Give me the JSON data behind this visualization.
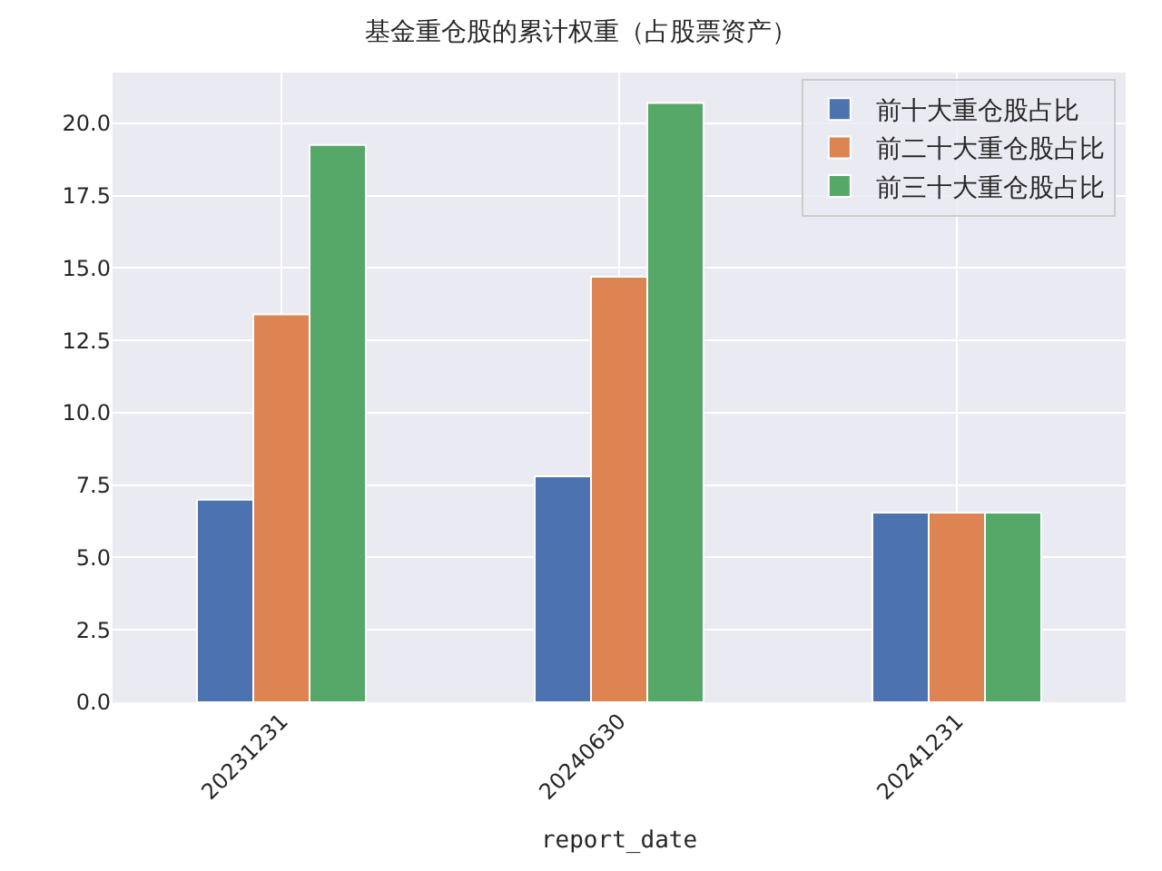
{
  "chart_data": {
    "type": "bar",
    "title": "基金重仓股的累计权重（占股票资产）",
    "xlabel": "report_date",
    "categories": [
      "20231231",
      "20240630",
      "20241231"
    ],
    "series": [
      {
        "name": "前十大重仓股占比",
        "color": "#4c72b0",
        "values": [
          7.0,
          7.8,
          6.55
        ]
      },
      {
        "name": "前二十大重仓股占比",
        "color": "#dd8452",
        "values": [
          13.4,
          14.7,
          6.55
        ]
      },
      {
        "name": "前三十大重仓股占比",
        "color": "#55a868",
        "values": [
          19.25,
          20.7,
          6.55
        ]
      }
    ],
    "ylim": [
      0,
      21.75
    ],
    "yticks": [
      {
        "value": 0,
        "label": "0.0"
      },
      {
        "value": 2.5,
        "label": "2.5"
      },
      {
        "value": 5,
        "label": "5.0"
      },
      {
        "value": 7.5,
        "label": "7.5"
      },
      {
        "value": 10,
        "label": "10.0"
      },
      {
        "value": 12.5,
        "label": "12.5"
      },
      {
        "value": 15,
        "label": "15.0"
      },
      {
        "value": 17.5,
        "label": "17.5"
      },
      {
        "value": 20,
        "label": "20.0"
      }
    ],
    "grid": true,
    "legend": "top right"
  }
}
